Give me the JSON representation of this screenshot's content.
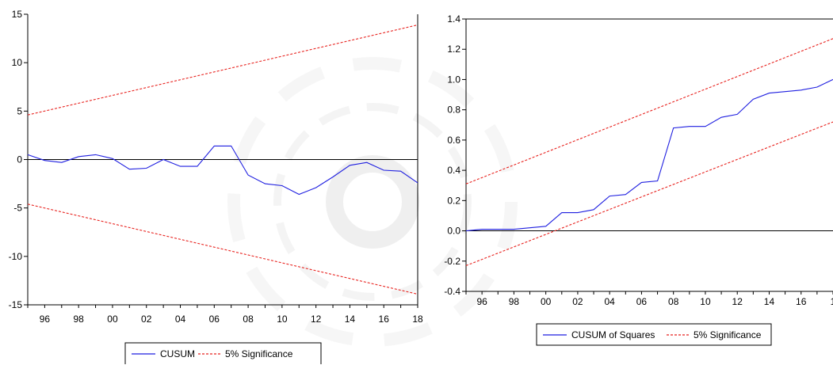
{
  "colors": {
    "cusum": "#1f1fe0",
    "significance": "#e8211d",
    "axis": "#000000",
    "background": "#ffffff"
  },
  "chart_data": [
    {
      "type": "line",
      "title": "",
      "xlabel": "",
      "ylabel": "",
      "x_ticks": [
        "96",
        "98",
        "00",
        "02",
        "04",
        "06",
        "08",
        "10",
        "12",
        "14",
        "16",
        "18"
      ],
      "y_ticks": [
        "15",
        "10",
        "5",
        "0",
        "-5",
        "-10",
        "-15"
      ],
      "xlim": [
        1995,
        2018
      ],
      "ylim": [
        -15,
        15
      ],
      "zero_line": true,
      "grid": false,
      "legend_position": "bottom-center",
      "legend": [
        "CUSUM",
        "5% Significance"
      ],
      "series": [
        {
          "name": "CUSUM",
          "style": "solid",
          "color": "#1f1fe0",
          "x": [
            1995,
            1996,
            1997,
            1998,
            1999,
            2000,
            2001,
            2002,
            2003,
            2004,
            2005,
            2006,
            2007,
            2008,
            2009,
            2010,
            2011,
            2012,
            2013,
            2014,
            2015,
            2016,
            2017,
            2018
          ],
          "y": [
            0.5,
            -0.1,
            -0.3,
            0.3,
            0.5,
            0.1,
            -1.0,
            -0.9,
            0.0,
            -0.7,
            -0.7,
            1.4,
            1.4,
            -1.6,
            -2.5,
            -2.7,
            -3.6,
            -2.9,
            -1.8,
            -0.6,
            -0.3,
            -1.1,
            -1.2,
            -2.4
          ]
        },
        {
          "name": "5% Significance",
          "style": "dashed",
          "color": "#e8211d",
          "x": [
            1995,
            2018
          ],
          "y": [
            4.6,
            13.9
          ]
        },
        {
          "name": "5% Significance",
          "style": "dashed",
          "color": "#e8211d",
          "x": [
            1995,
            2018
          ],
          "y": [
            -4.6,
            -13.9
          ]
        }
      ]
    },
    {
      "type": "line",
      "title": "",
      "xlabel": "",
      "ylabel": "",
      "x_ticks": [
        "96",
        "98",
        "00",
        "02",
        "04",
        "06",
        "08",
        "10",
        "12",
        "14",
        "16",
        "1"
      ],
      "y_ticks": [
        "1.4",
        "1.2",
        "1.0",
        "0.8",
        "0.6",
        "0.4",
        "0.2",
        "0.0",
        "-0.2",
        "-0.4"
      ],
      "xlim": [
        1995,
        2018
      ],
      "ylim": [
        -0.4,
        1.4
      ],
      "zero_line": true,
      "grid": false,
      "legend_position": "bottom-center",
      "legend": [
        "CUSUM of Squares",
        "5% Significance"
      ],
      "series": [
        {
          "name": "CUSUM of Squares",
          "style": "solid",
          "color": "#1f1fe0",
          "x": [
            1995,
            1996,
            1997,
            1998,
            1999,
            2000,
            2001,
            2002,
            2003,
            2004,
            2005,
            2006,
            2007,
            2008,
            2009,
            2010,
            2011,
            2012,
            2013,
            2014,
            2015,
            2016,
            2017,
            2018
          ],
          "y": [
            0.0,
            0.01,
            0.01,
            0.01,
            0.02,
            0.03,
            0.12,
            0.12,
            0.14,
            0.23,
            0.24,
            0.32,
            0.33,
            0.68,
            0.69,
            0.69,
            0.75,
            0.77,
            0.87,
            0.91,
            0.92,
            0.93,
            0.95,
            1.0
          ]
        },
        {
          "name": "5% Significance",
          "style": "dashed",
          "color": "#e8211d",
          "x": [
            1995,
            2018
          ],
          "y": [
            0.31,
            1.27
          ]
        },
        {
          "name": "5% Significance",
          "style": "dashed",
          "color": "#e8211d",
          "x": [
            1995,
            2018
          ],
          "y": [
            -0.23,
            0.72
          ]
        }
      ]
    }
  ]
}
